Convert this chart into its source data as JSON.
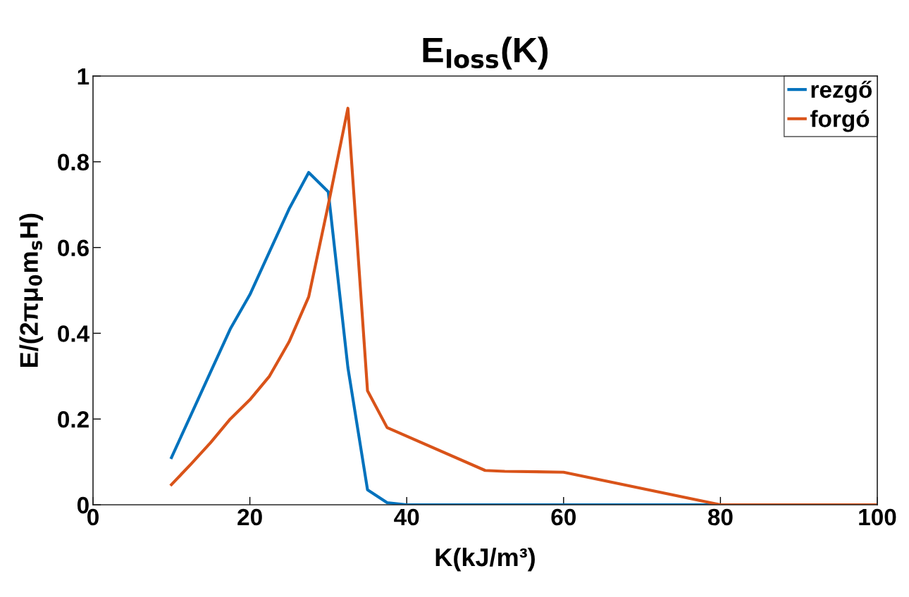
{
  "chart_data": {
    "type": "line",
    "title": "E$_{loss}$(K)",
    "xlabel": "K(kJ/m³)",
    "ylabel": "E/(2πμ$_{0}$m$_{s}$H)",
    "xlim": [
      0,
      100
    ],
    "xticks": [
      0,
      20,
      40,
      60,
      80,
      100
    ],
    "ylim": [
      0,
      1
    ],
    "yticks": [
      0,
      0.2,
      0.4,
      0.6,
      0.8,
      1
    ],
    "grid": false,
    "legend": "top right",
    "series": [
      {
        "name": "rezgő",
        "color": "#0072bd",
        "x": [
          10,
          12.5,
          15,
          17.5,
          20,
          22.5,
          25,
          27.5,
          30,
          32.5,
          35,
          37.5,
          40,
          100
        ],
        "values": [
          0.11,
          0.21,
          0.31,
          0.41,
          0.49,
          0.59,
          0.69,
          0.775,
          0.73,
          0.32,
          0.035,
          0.005,
          0,
          0
        ]
      },
      {
        "name": "forgó",
        "color": "#d95319",
        "x": [
          10,
          12.5,
          15,
          17.5,
          20,
          22.5,
          25,
          27.5,
          30,
          32.5,
          35,
          37.5,
          50,
          52.5,
          60,
          80,
          100
        ],
        "values": [
          0.047,
          0.095,
          0.145,
          0.2,
          0.245,
          0.3,
          0.38,
          0.485,
          0.7,
          0.925,
          0.266,
          0.18,
          0.08,
          0.078,
          0.076,
          0,
          0
        ]
      }
    ]
  }
}
